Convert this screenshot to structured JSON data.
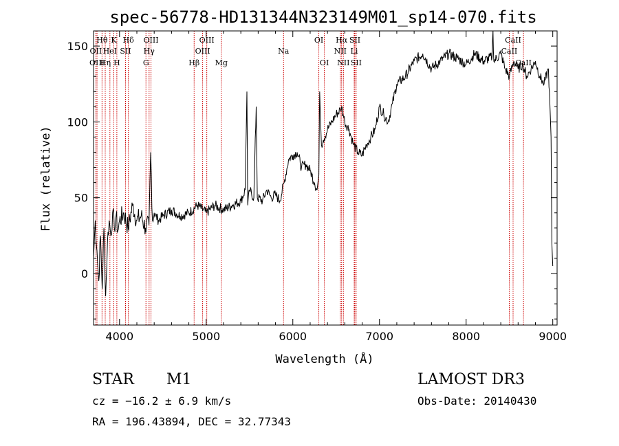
{
  "chart_data": {
    "type": "line",
    "title": "spec-56778-HD131344N323149M01_sp14-070.fits",
    "xlabel": "Wavelength (Å)",
    "ylabel": "Flux (relative)",
    "xlim": [
      3700,
      9050
    ],
    "ylim": [
      -34,
      160
    ],
    "xticks": [
      4000,
      5000,
      6000,
      7000,
      8000,
      9000
    ],
    "yticks": [
      0,
      50,
      100,
      150
    ],
    "grid": false,
    "series": [
      {
        "name": "flux",
        "x": [
          3700,
          3720,
          3740,
          3760,
          3780,
          3800,
          3820,
          3840,
          3860,
          3880,
          3900,
          3920,
          3940,
          3960,
          3980,
          4000,
          4050,
          4100,
          4150,
          4200,
          4250,
          4300,
          4340,
          4360,
          4380,
          4400,
          4450,
          4500,
          4600,
          4700,
          4800,
          4900,
          5000,
          5100,
          5200,
          5300,
          5400,
          5450,
          5470,
          5480,
          5500,
          5550,
          5577,
          5590,
          5650,
          5700,
          5750,
          5800,
          5850,
          5900,
          5950,
          6000,
          6050,
          6100,
          6150,
          6200,
          6250,
          6280,
          6300,
          6310,
          6330,
          6350,
          6400,
          6450,
          6500,
          6550,
          6563,
          6580,
          6600,
          6650,
          6700,
          6750,
          6800,
          6850,
          6900,
          6950,
          7000,
          7050,
          7100,
          7150,
          7200,
          7300,
          7400,
          7500,
          7600,
          7700,
          7800,
          7900,
          8000,
          8100,
          8200,
          8300,
          8310,
          8320,
          8400,
          8450,
          8500,
          8550,
          8600,
          8650,
          8700,
          8750,
          8800,
          8850,
          8900,
          8950,
          8980,
          8990,
          9000
        ],
        "values": [
          10,
          35,
          15,
          -5,
          25,
          -10,
          30,
          -15,
          20,
          35,
          25,
          40,
          30,
          38,
          28,
          35,
          40,
          30,
          45,
          35,
          38,
          30,
          32,
          80,
          35,
          40,
          35,
          38,
          42,
          38,
          40,
          45,
          40,
          45,
          42,
          45,
          48,
          55,
          120,
          45,
          55,
          50,
          110,
          50,
          48,
          55,
          50,
          52,
          48,
          60,
          75,
          78,
          80,
          70,
          72,
          68,
          60,
          55,
          65,
          120,
          85,
          88,
          95,
          100,
          105,
          108,
          110,
          105,
          100,
          95,
          85,
          80,
          78,
          85,
          90,
          95,
          110,
          105,
          100,
          112,
          125,
          130,
          140,
          145,
          135,
          140,
          145,
          142,
          138,
          145,
          140,
          143,
          160,
          140,
          145,
          135,
          130,
          140,
          135,
          138,
          130,
          135,
          140,
          130,
          125,
          135,
          90,
          20,
          5
        ]
      }
    ],
    "spectral_lines": [
      {
        "label": "Hθ",
        "x": 3798,
        "row": 1
      },
      {
        "label": "OII",
        "x": 3727,
        "row": 2
      },
      {
        "label": "OIII",
        "x": 3740,
        "row": 3
      },
      {
        "label": "K",
        "x": 3934,
        "row": 1
      },
      {
        "label": "HeI",
        "x": 3889,
        "row": 2
      },
      {
        "label": "Hη",
        "x": 3835,
        "row": 3
      },
      {
        "label": "SII",
        "x": 4069,
        "row": 2
      },
      {
        "label": "H",
        "x": 3969,
        "row": 3
      },
      {
        "label": "Hδ",
        "x": 4102,
        "row": 1
      },
      {
        "label": "OIII",
        "x": 4363,
        "row": 1
      },
      {
        "label": "Hγ",
        "x": 4341,
        "row": 2
      },
      {
        "label": "G",
        "x": 4305,
        "row": 3
      },
      {
        "label": "Hβ",
        "x": 4861,
        "row": 3
      },
      {
        "label": "OIII",
        "x": 5007,
        "row": 1
      },
      {
        "label": "OIII",
        "x": 4959,
        "row": 2
      },
      {
        "label": "Mg",
        "x": 5175,
        "row": 3
      },
      {
        "label": "Na",
        "x": 5893,
        "row": 2
      },
      {
        "label": "OI",
        "x": 6300,
        "row": 1
      },
      {
        "label": "OI",
        "x": 6364,
        "row": 3
      },
      {
        "label": "Hα",
        "x": 6563,
        "row": 1
      },
      {
        "label": "SII",
        "x": 6716,
        "row": 1
      },
      {
        "label": "NII",
        "x": 6548,
        "row": 2
      },
      {
        "label": "Li",
        "x": 6708,
        "row": 2
      },
      {
        "label": "NII",
        "x": 6584,
        "row": 3
      },
      {
        "label": "SII",
        "x": 6731,
        "row": 3
      },
      {
        "label": "CaII",
        "x": 8542,
        "row": 1
      },
      {
        "label": "CaII",
        "x": 8498,
        "row": 2
      },
      {
        "label": "CaII",
        "x": 8662,
        "row": 3
      }
    ]
  },
  "info": {
    "object_class": "STAR",
    "subclass": "M1",
    "survey": "LAMOST DR3",
    "cz": "cz = −16.2 ± 6.9 km/s",
    "obs_date": "Obs-Date: 20140430",
    "coords": "RA = 196.43894, DEC =  32.77343"
  },
  "colors": {
    "line_markers": "#cc0000",
    "spectrum": "#000000",
    "axes": "#000000"
  }
}
